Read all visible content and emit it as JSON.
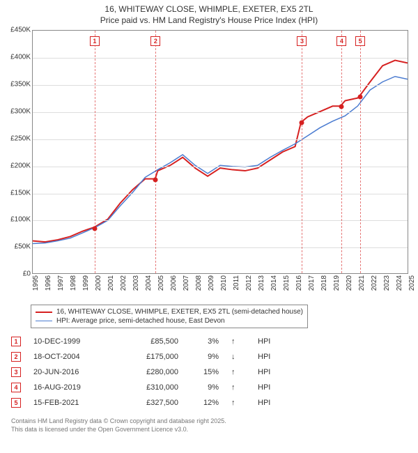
{
  "title_line1": "16, WHITEWAY CLOSE, WHIMPLE, EXETER, EX5 2TL",
  "title_line2": "Price paid vs. HM Land Registry's House Price Index (HPI)",
  "chart": {
    "type": "line",
    "ylim": [
      0,
      450000
    ],
    "ytick_step": 50000,
    "yticks": [
      "£0",
      "£50K",
      "£100K",
      "£150K",
      "£200K",
      "£250K",
      "£300K",
      "£350K",
      "£400K",
      "£450K"
    ],
    "xlim": [
      1995,
      2025
    ],
    "xticks": [
      "1995",
      "1996",
      "1997",
      "1998",
      "1999",
      "2000",
      "2001",
      "2002",
      "2003",
      "2004",
      "2005",
      "2006",
      "2007",
      "2008",
      "2009",
      "2010",
      "2011",
      "2012",
      "2013",
      "2014",
      "2015",
      "2016",
      "2017",
      "2018",
      "2019",
      "2020",
      "2021",
      "2022",
      "2023",
      "2024",
      "2025"
    ],
    "background_color": "#ffffff",
    "grid_color": "#dddddd",
    "border_color": "#888888",
    "series": [
      {
        "name": "subject",
        "label": "16, WHITEWAY CLOSE, WHIMPLE, EXETER, EX5 2TL (semi-detached house)",
        "color": "#d62020",
        "line_width": 2,
        "data": [
          [
            1995,
            60000
          ],
          [
            1996,
            58000
          ],
          [
            1997,
            62000
          ],
          [
            1998,
            68000
          ],
          [
            1999,
            78000
          ],
          [
            1999.94,
            85500
          ],
          [
            2001,
            100000
          ],
          [
            2002,
            130000
          ],
          [
            2003,
            155000
          ],
          [
            2004,
            175000
          ],
          [
            2004.8,
            175000
          ],
          [
            2005,
            190000
          ],
          [
            2006,
            200000
          ],
          [
            2007,
            215000
          ],
          [
            2008,
            195000
          ],
          [
            2009,
            180000
          ],
          [
            2010,
            195000
          ],
          [
            2011,
            192000
          ],
          [
            2012,
            190000
          ],
          [
            2013,
            195000
          ],
          [
            2014,
            210000
          ],
          [
            2015,
            225000
          ],
          [
            2016,
            235000
          ],
          [
            2016.47,
            280000
          ],
          [
            2017,
            290000
          ],
          [
            2018,
            300000
          ],
          [
            2019,
            310000
          ],
          [
            2019.63,
            310000
          ],
          [
            2020,
            320000
          ],
          [
            2021,
            325000
          ],
          [
            2021.12,
            327500
          ],
          [
            2022,
            355000
          ],
          [
            2023,
            385000
          ],
          [
            2024,
            395000
          ],
          [
            2025,
            390000
          ]
        ]
      },
      {
        "name": "hpi",
        "label": "HPI: Average price, semi-detached house, East Devon",
        "color": "#4a7bd0",
        "line_width": 1.5,
        "data": [
          [
            1995,
            55000
          ],
          [
            1996,
            56000
          ],
          [
            1997,
            60000
          ],
          [
            1998,
            65000
          ],
          [
            1999,
            75000
          ],
          [
            2000,
            85000
          ],
          [
            2001,
            98000
          ],
          [
            2002,
            125000
          ],
          [
            2003,
            150000
          ],
          [
            2004,
            178000
          ],
          [
            2005,
            192000
          ],
          [
            2006,
            205000
          ],
          [
            2007,
            220000
          ],
          [
            2008,
            200000
          ],
          [
            2009,
            185000
          ],
          [
            2010,
            200000
          ],
          [
            2011,
            198000
          ],
          [
            2012,
            197000
          ],
          [
            2013,
            200000
          ],
          [
            2014,
            215000
          ],
          [
            2015,
            228000
          ],
          [
            2016,
            240000
          ],
          [
            2017,
            255000
          ],
          [
            2018,
            270000
          ],
          [
            2019,
            282000
          ],
          [
            2020,
            292000
          ],
          [
            2021,
            310000
          ],
          [
            2022,
            340000
          ],
          [
            2023,
            355000
          ],
          [
            2024,
            365000
          ],
          [
            2025,
            360000
          ]
        ]
      }
    ],
    "markers": [
      {
        "n": "1",
        "year": 1999.94,
        "price": 85500,
        "color": "#d62020"
      },
      {
        "n": "2",
        "year": 2004.8,
        "price": 175000,
        "color": "#d62020"
      },
      {
        "n": "3",
        "year": 2016.47,
        "price": 280000,
        "color": "#d62020"
      },
      {
        "n": "4",
        "year": 2019.63,
        "price": 310000,
        "color": "#d62020"
      },
      {
        "n": "5",
        "year": 2021.12,
        "price": 327500,
        "color": "#d62020"
      }
    ],
    "legend_position": "below"
  },
  "legend": {
    "items": [
      {
        "color": "#d62020",
        "width": 2,
        "label": "16, WHITEWAY CLOSE, WHIMPLE, EXETER, EX5 2TL (semi-detached house)"
      },
      {
        "color": "#4a7bd0",
        "width": 1.5,
        "label": "HPI: Average price, semi-detached house, East Devon"
      }
    ]
  },
  "events": [
    {
      "n": "1",
      "color": "#d62020",
      "date": "10-DEC-1999",
      "price": "£85,500",
      "pct": "3%",
      "dir": "↑",
      "ref": "HPI"
    },
    {
      "n": "2",
      "color": "#d62020",
      "date": "18-OCT-2004",
      "price": "£175,000",
      "pct": "9%",
      "dir": "↓",
      "ref": "HPI"
    },
    {
      "n": "3",
      "color": "#d62020",
      "date": "20-JUN-2016",
      "price": "£280,000",
      "pct": "15%",
      "dir": "↑",
      "ref": "HPI"
    },
    {
      "n": "4",
      "color": "#d62020",
      "date": "16-AUG-2019",
      "price": "£310,000",
      "pct": "9%",
      "dir": "↑",
      "ref": "HPI"
    },
    {
      "n": "5",
      "color": "#d62020",
      "date": "15-FEB-2021",
      "price": "£327,500",
      "pct": "12%",
      "dir": "↑",
      "ref": "HPI"
    }
  ],
  "attribution_line1": "Contains HM Land Registry data © Crown copyright and database right 2025.",
  "attribution_line2": "This data is licensed under the Open Government Licence v3.0."
}
